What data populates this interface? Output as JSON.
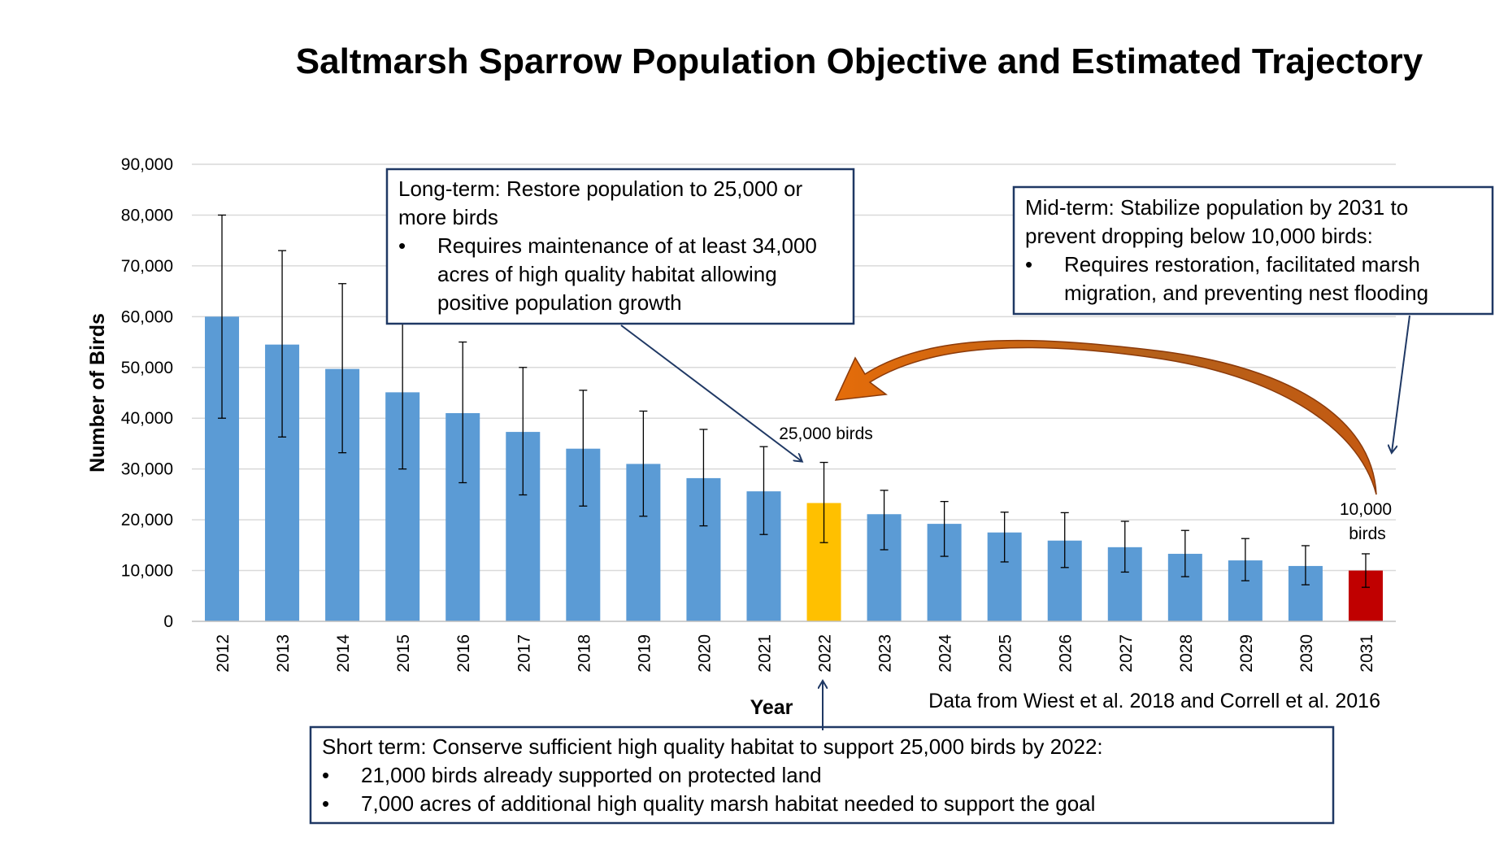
{
  "chart_data": {
    "type": "bar",
    "title": "Saltmarsh Sparrow Population Objective and Estimated Trajectory",
    "xlabel": "Year",
    "ylabel": "Number of Birds",
    "ylim": [
      0,
      90000
    ],
    "yticks": [
      "0",
      "10,000",
      "20,000",
      "30,000",
      "40,000",
      "50,000",
      "60,000",
      "70,000",
      "80,000",
      "90,000"
    ],
    "grid": true,
    "categories": [
      "2012",
      "2013",
      "2014",
      "2015",
      "2016",
      "2017",
      "2018",
      "2019",
      "2020",
      "2021",
      "2022",
      "2023",
      "2024",
      "2025",
      "2026",
      "2027",
      "2028",
      "2029",
      "2030",
      "2031"
    ],
    "values": [
      60000,
      54500,
      49700,
      45100,
      41000,
      37300,
      34000,
      31000,
      28200,
      25600,
      23300,
      21100,
      19200,
      17500,
      15900,
      14600,
      13300,
      12000,
      10900,
      10000
    ],
    "error_low": [
      40000,
      36300,
      33200,
      30000,
      27300,
      24900,
      22700,
      20700,
      18800,
      17100,
      15500,
      14100,
      12800,
      11700,
      10600,
      9700,
      8800,
      8000,
      7200,
      6700
    ],
    "error_high": [
      80000,
      73000,
      66500,
      60300,
      55000,
      50000,
      45500,
      41400,
      37800,
      34400,
      31300,
      25800,
      23600,
      21500,
      21400,
      19700,
      17900,
      16300,
      14900,
      13300
    ],
    "bar_colors": {
      "default": "#5b9bd5",
      "highlight_2022": "#ffc000",
      "highlight_2031": "#c00000"
    },
    "annotations": {
      "label_2022": "25,000 birds",
      "label_2031_line1": "10,000",
      "label_2031_line2": "birds"
    },
    "source_note": "Data from Wiest et al. 2018 and Correll et al. 2016"
  },
  "callouts": {
    "long_term": {
      "line1": "Long-term: Restore population to 25,000 or",
      "line2": "more birds",
      "bullet": "•",
      "bullet_line1": "Requires maintenance of at least 34,000",
      "bullet_line2": "acres of high quality habitat allowing",
      "bullet_line3": "positive population growth"
    },
    "mid_term": {
      "line1": "Mid-term: Stabilize population by 2031 to",
      "line2": "prevent dropping below 10,000 birds:",
      "bullet": "•",
      "bullet_line1": "Requires restoration, facilitated marsh",
      "bullet_line2": "migration, and preventing nest flooding"
    },
    "short_term": {
      "line1": "Short term: Conserve sufficient high quality habitat to support 25,000 birds by 2022:",
      "bullet": "•",
      "bullet1": "21,000 birds already supported on protected land",
      "bullet2": "7,000 acres of additional high quality marsh habitat needed to support the goal"
    }
  },
  "colors": {
    "box_border": "#1f3864",
    "arrow": "#1f3864",
    "curved_arrow": "#c55a11",
    "gridline": "#d9d9d9"
  }
}
